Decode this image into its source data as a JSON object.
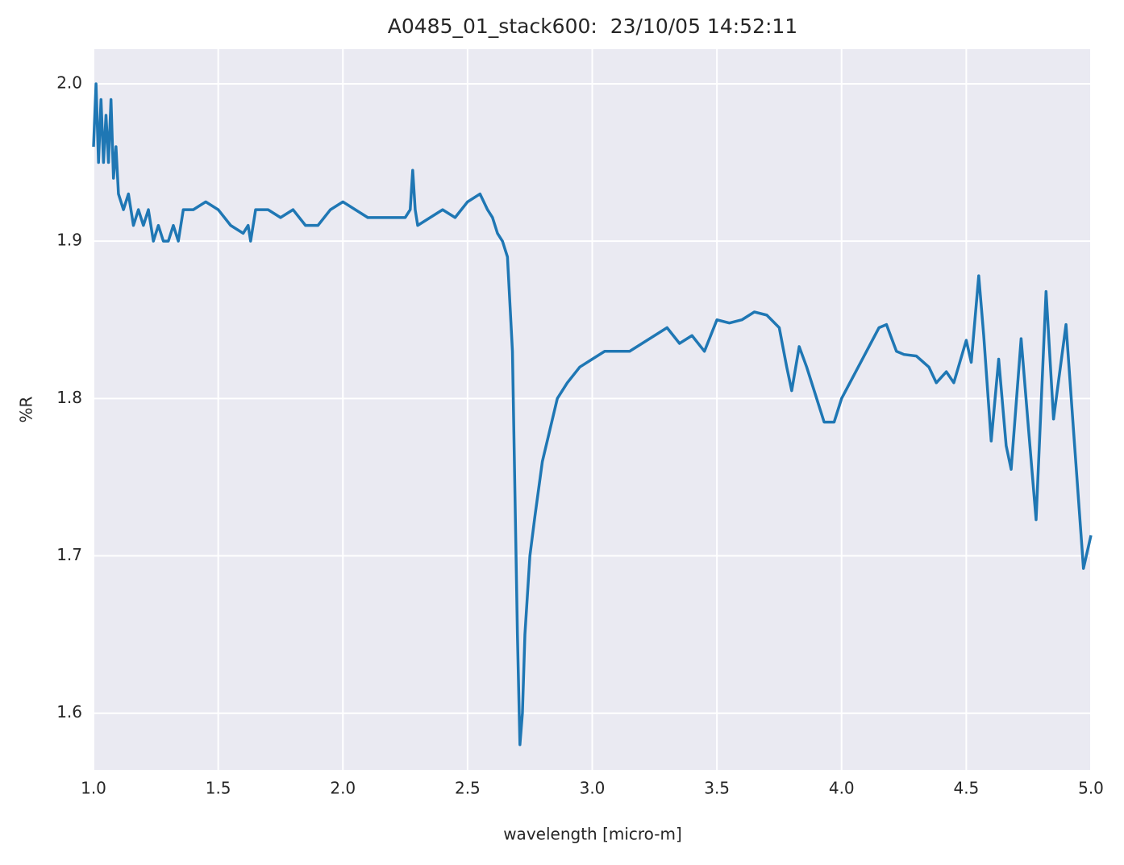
{
  "chart_data": {
    "type": "line",
    "title": "A0485_01_stack600:  23/10/05 14:52:11",
    "xlabel": "wavelength [micro-m]",
    "ylabel": "%R",
    "background": "#eaeaf2",
    "grid": true,
    "xlim": [
      1,
      5
    ],
    "ylim": [
      1.564,
      2.022
    ],
    "xticks": [
      {
        "value": 1,
        "label": "1.0"
      },
      1.5,
      {
        "value": 2,
        "label": "2.0"
      },
      2.5,
      {
        "value": 3,
        "label": "3.0"
      },
      3.5,
      {
        "value": 4,
        "label": "4.0"
      },
      4.5,
      {
        "value": 5,
        "label": "5.0"
      }
    ],
    "yticks": [
      1.6,
      1.7,
      1.8,
      1.9,
      {
        "value": 2,
        "label": "2.0"
      }
    ],
    "x": [
      1.0,
      1.01,
      1.02,
      1.03,
      1.04,
      1.05,
      1.06,
      1.07,
      1.08,
      1.09,
      1.1,
      1.12,
      1.14,
      1.16,
      1.18,
      1.2,
      1.22,
      1.24,
      1.26,
      1.28,
      1.3,
      1.32,
      1.34,
      1.36,
      1.4,
      1.45,
      1.5,
      1.55,
      1.6,
      1.62,
      1.63,
      1.65,
      1.7,
      1.75,
      1.8,
      1.85,
      1.9,
      1.95,
      2.0,
      2.05,
      2.1,
      2.15,
      2.2,
      2.25,
      2.27,
      2.28,
      2.29,
      2.3,
      2.35,
      2.4,
      2.45,
      2.5,
      2.55,
      2.58,
      2.6,
      2.62,
      2.64,
      2.66,
      2.68,
      2.7,
      2.71,
      2.72,
      2.73,
      2.75,
      2.77,
      2.8,
      2.83,
      2.86,
      2.9,
      2.95,
      3.0,
      3.05,
      3.1,
      3.15,
      3.2,
      3.25,
      3.3,
      3.35,
      3.4,
      3.45,
      3.5,
      3.55,
      3.6,
      3.65,
      3.7,
      3.75,
      3.78,
      3.8,
      3.83,
      3.86,
      3.9,
      3.93,
      3.97,
      4.0,
      4.05,
      4.1,
      4.15,
      4.18,
      4.22,
      4.25,
      4.3,
      4.35,
      4.38,
      4.42,
      4.45,
      4.5,
      4.52,
      4.55,
      4.57,
      4.6,
      4.63,
      4.66,
      4.68,
      4.72,
      4.75,
      4.78,
      4.82,
      4.85,
      4.9,
      4.93,
      4.97,
      5.0
    ],
    "series": [
      {
        "name": "%R",
        "color": "#1f77b4",
        "values": [
          1.96,
          2.0,
          1.95,
          1.99,
          1.95,
          1.98,
          1.95,
          1.99,
          1.94,
          1.96,
          1.93,
          1.92,
          1.93,
          1.91,
          1.92,
          1.91,
          1.92,
          1.9,
          1.91,
          1.9,
          1.9,
          1.91,
          1.9,
          1.92,
          1.92,
          1.925,
          1.92,
          1.91,
          1.905,
          1.91,
          1.9,
          1.92,
          1.92,
          1.915,
          1.92,
          1.91,
          1.91,
          1.92,
          1.925,
          1.92,
          1.915,
          1.915,
          1.915,
          1.915,
          1.92,
          1.945,
          1.92,
          1.91,
          1.915,
          1.92,
          1.915,
          1.925,
          1.93,
          1.92,
          1.915,
          1.905,
          1.9,
          1.89,
          1.83,
          1.65,
          1.58,
          1.6,
          1.65,
          1.7,
          1.725,
          1.76,
          1.78,
          1.8,
          1.81,
          1.82,
          1.825,
          1.83,
          1.83,
          1.83,
          1.835,
          1.84,
          1.845,
          1.835,
          1.84,
          1.83,
          1.85,
          1.848,
          1.85,
          1.855,
          1.853,
          1.845,
          1.82,
          1.805,
          1.833,
          1.82,
          1.8,
          1.785,
          1.785,
          1.8,
          1.815,
          1.83,
          1.845,
          1.847,
          1.83,
          1.828,
          1.827,
          1.82,
          1.81,
          1.817,
          1.81,
          1.837,
          1.823,
          1.878,
          1.84,
          1.773,
          1.825,
          1.77,
          1.755,
          1.838,
          1.78,
          1.723,
          1.868,
          1.787,
          1.847,
          1.78,
          1.692,
          1.713
        ]
      }
    ]
  }
}
